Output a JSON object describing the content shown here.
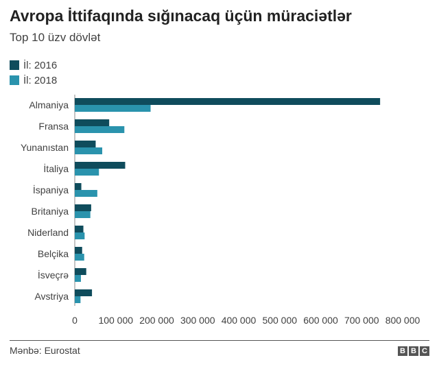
{
  "title": "Avropa İttifaqında sığınacaq üçün müraciətlər",
  "subtitle": "Top 10 üzv dövlət",
  "source": "Mənbə: Eurostat",
  "logo": [
    "B",
    "B",
    "C"
  ],
  "colors": {
    "series_2016": "#0f4c5c",
    "series_2018": "#2a93ad",
    "axis_text": "#404040"
  },
  "chart_data": {
    "type": "bar",
    "orientation": "horizontal",
    "categories": [
      "Almaniya",
      "Fransa",
      "Yunanıstan",
      "İtaliya",
      "İspaniya",
      "Britaniya",
      "Niderland",
      "Belçika",
      "İsveçrə",
      "Avstriya"
    ],
    "series": [
      {
        "name": "İl: 2016",
        "values": [
          745000,
          84000,
          51000,
          123000,
          16000,
          40000,
          21000,
          18000,
          28000,
          42000
        ]
      },
      {
        "name": "İl: 2018",
        "values": [
          185000,
          121000,
          67000,
          59000,
          55000,
          38000,
          24000,
          23000,
          15000,
          14000
        ]
      }
    ],
    "xlim": [
      0,
      800000
    ],
    "xticks": [
      "0",
      "100 000",
      "200 000",
      "300 000",
      "400 000",
      "500 000",
      "600 000",
      "700 000",
      "800 000"
    ],
    "xlabel": "",
    "ylabel": "",
    "legend": "top-left"
  }
}
